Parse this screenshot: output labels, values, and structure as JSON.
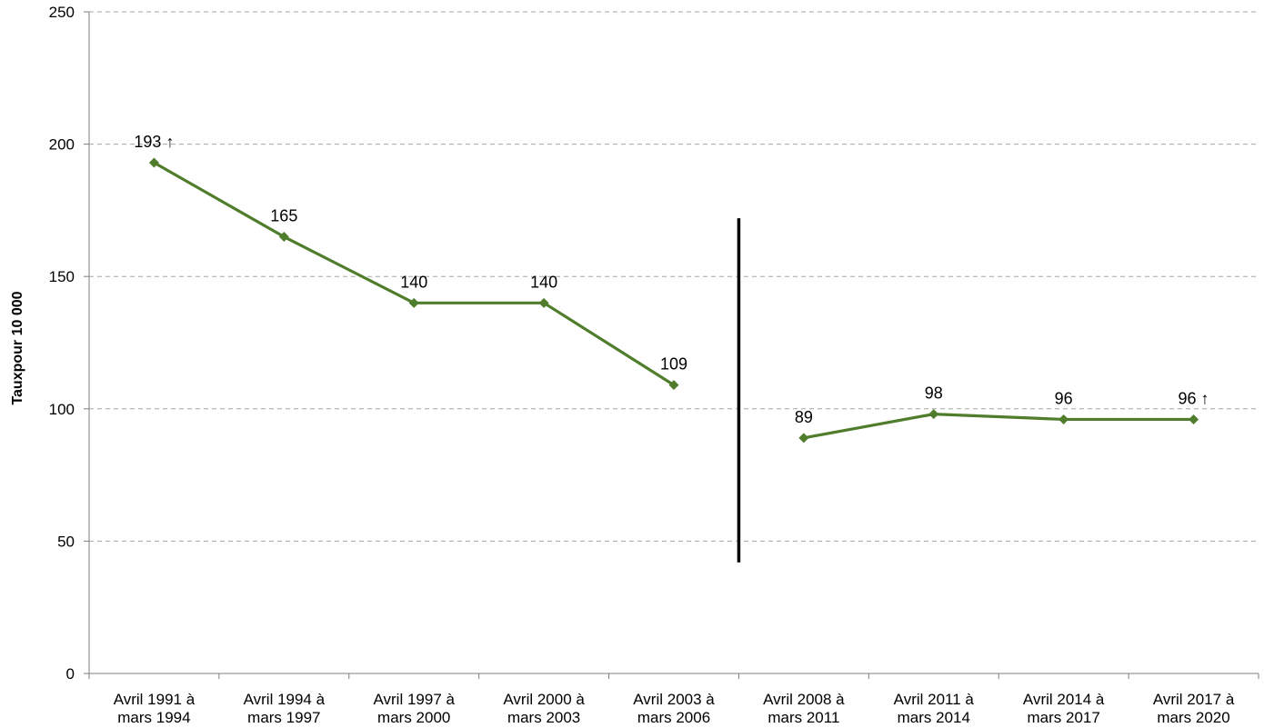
{
  "chart_data": {
    "type": "line",
    "title": "",
    "xlabel": "",
    "ylabel": "Tauxpour 10 000",
    "ylim": [
      0,
      250
    ],
    "yticks": [
      0,
      50,
      100,
      150,
      200,
      250
    ],
    "grid": true,
    "legend": "none",
    "categories": [
      [
        "Avril 1991 à",
        "mars 1994"
      ],
      [
        "Avril 1994 à",
        "mars 1997"
      ],
      [
        "Avril 1997 à",
        "mars 2000"
      ],
      [
        "Avril 2000 à",
        "mars 2003"
      ],
      [
        "Avril 2003 à",
        "mars 2006"
      ],
      [
        "Avril 2008 à",
        "mars 2011"
      ],
      [
        "Avril 2011 à",
        "mars 2014"
      ],
      [
        "Avril 2014 à",
        "mars 2017"
      ],
      [
        "Avril 2017 à",
        "mars 2020"
      ]
    ],
    "series": [
      {
        "color": "#4f7d2c",
        "segments": [
          {
            "indices": [
              0,
              1,
              2,
              3,
              4
            ],
            "values": [
              193,
              165,
              140,
              140,
              109
            ]
          },
          {
            "indices": [
              5,
              6,
              7,
              8
            ],
            "values": [
              89,
              98,
              96,
              96
            ]
          }
        ]
      }
    ],
    "data_labels": [
      "193 ↑",
      "165",
      "140",
      "140",
      "109",
      "89",
      "98",
      "96",
      "96 ↑"
    ],
    "break_marker": {
      "between": [
        4,
        5
      ],
      "from_value": 42,
      "to_value": 172
    }
  }
}
